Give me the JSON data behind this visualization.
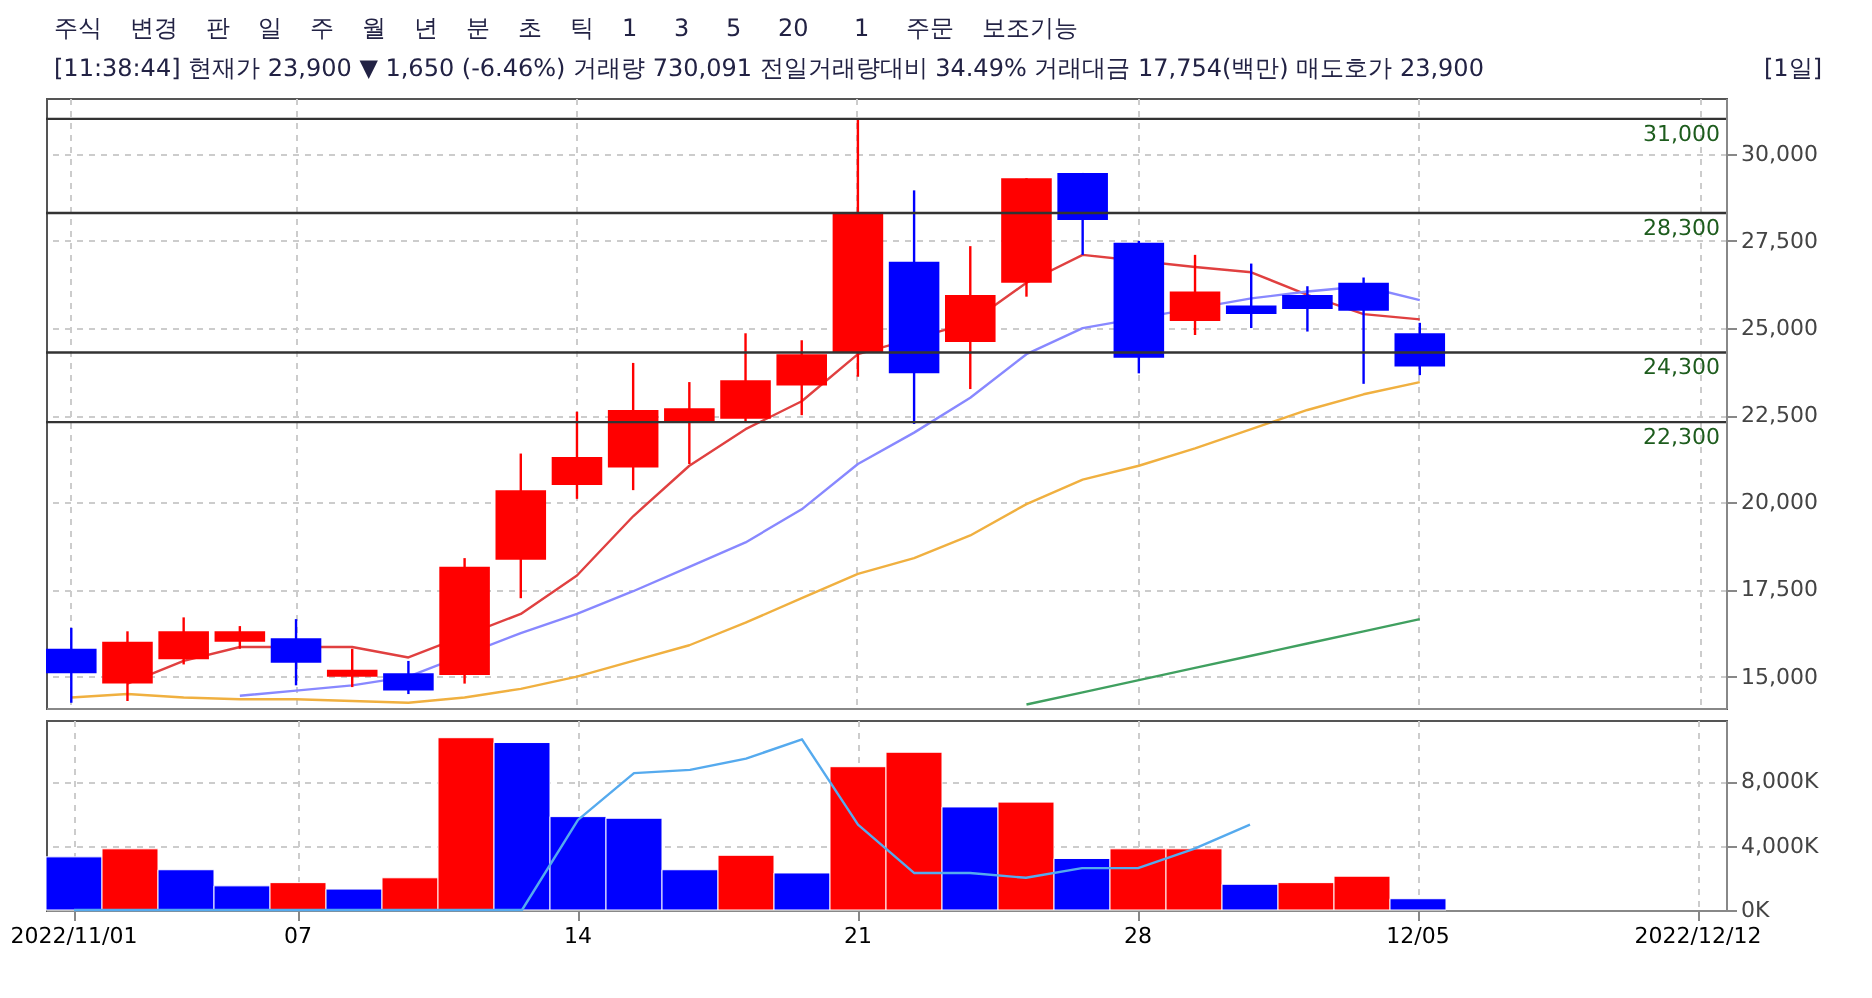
{
  "chart_data": [
    {
      "type": "candlestick",
      "title": "[11:38:44] 현재가 23,900 ▼ 1,650 (-6.46%) 거래량 730,091 전일거래량대비 34.49% 거래대금 17,754(백만) 매도호가 23,900",
      "annotations": [
        "주식",
        "변경",
        "판",
        "일",
        "주",
        "월",
        "년",
        "분",
        "초",
        "틱",
        "1",
        "3",
        "5",
        "20",
        "1",
        "주문",
        "보조기능",
        "[1일]"
      ],
      "categories": [
        null,
        null,
        null,
        null,
        null,
        null,
        null,
        null,
        null,
        null,
        null,
        null,
        null,
        null,
        null,
        null,
        null,
        null,
        null,
        null,
        null,
        null,
        null,
        null,
        null,
        null,
        null,
        null,
        null,
        null
      ],
      "ohlc": [
        [
          15800,
          16400,
          14250,
          15100
        ],
        [
          14800,
          16300,
          14300,
          16000
        ],
        [
          15500,
          16700,
          15350,
          16300
        ],
        [
          16000,
          16450,
          15800,
          16300
        ],
        [
          16100,
          16650,
          14750,
          15400
        ],
        [
          15000,
          15800,
          14700,
          15200
        ],
        [
          15100,
          15450,
          14500,
          14600
        ],
        [
          15050,
          18400,
          14800,
          18150
        ],
        [
          18350,
          21400,
          17250,
          20350
        ],
        [
          20500,
          22600,
          20100,
          21300
        ],
        [
          21000,
          24000,
          20350,
          22650
        ],
        [
          22300,
          23450,
          21100,
          22700
        ],
        [
          22400,
          24850,
          22300,
          23500
        ],
        [
          23350,
          24650,
          22500,
          24250
        ],
        [
          24300,
          31000,
          23600,
          28300
        ],
        [
          26900,
          28950,
          22250,
          23700
        ],
        [
          24600,
          27350,
          23250,
          25950
        ],
        [
          26300,
          29300,
          25900,
          29300
        ],
        [
          29450,
          29450,
          27100,
          28100
        ],
        [
          27450,
          27500,
          23700,
          24150
        ],
        [
          25200,
          27100,
          24800,
          26050
        ],
        [
          25650,
          26850,
          25000,
          25400
        ],
        [
          25950,
          26200,
          24900,
          25550
        ],
        [
          26300,
          26450,
          23400,
          25500
        ],
        [
          24850,
          25150,
          23650,
          23900
        ],
        null,
        null,
        null,
        null,
        null
      ],
      "colors": [
        "#0000ff",
        "#ff0000",
        "#ff0000",
        "#ff0000",
        "#0000ff",
        "#ff0000",
        "#0000ff",
        "#ff0000",
        "#ff0000",
        "#ff0000",
        "#ff0000",
        "#ff0000",
        "#ff0000",
        "#ff0000",
        "#ff0000",
        "#0000ff",
        "#ff0000",
        "#ff0000",
        "#0000ff",
        "#0000ff",
        "#ff0000",
        "#0000ff",
        "#0000ff",
        "#0000ff",
        "#0000ff",
        null,
        null,
        null,
        null,
        null
      ],
      "series": [
        {
          "type": "line",
          "color": "#e04040",
          "values": [
            null,
            14800,
            15450,
            15850,
            null,
            15850,
            15550,
            null,
            16800,
            17900,
            19600,
            21050,
            22100,
            22900,
            24250,
            null,
            25150,
            26300,
            27100,
            null,
            26750,
            26600,
            25950,
            25400,
            25250,
            null,
            null,
            null,
            null,
            null
          ]
        },
        {
          "type": "line",
          "color": "#8888ff",
          "values": [
            null,
            null,
            null,
            14450,
            14600,
            14750,
            15000,
            null,
            16250,
            16800,
            17450,
            18150,
            18850,
            19800,
            21100,
            22000,
            23000,
            24250,
            25000,
            null,
            null,
            25850,
            26050,
            26200,
            25800,
            null,
            null,
            null,
            null,
            null
          ]
        },
        {
          "type": "line",
          "color": "#f0b040",
          "values": [
            14400,
            14500,
            14400,
            14350,
            14350,
            14300,
            14250,
            14400,
            14650,
            15000,
            15450,
            15900,
            16550,
            17250,
            17950,
            18400,
            19050,
            19950,
            20650,
            21050,
            21550,
            22100,
            22650,
            23100,
            23450,
            null,
            null,
            null,
            null,
            null
          ]
        },
        {
          "type": "line",
          "color": "#40a060",
          "values": [
            null,
            null,
            null,
            null,
            null,
            null,
            null,
            null,
            null,
            null,
            null,
            null,
            null,
            null,
            null,
            null,
            null,
            14200,
            14550,
            14900,
            15250,
            15600,
            15950,
            16300,
            16650,
            null,
            null,
            null,
            null,
            null
          ]
        }
      ],
      "ylim": [
        14100,
        31600
      ],
      "yticks": [
        {
          "value": 15000,
          "label": "15,000"
        },
        {
          "value": 17500,
          "label": "17,500"
        },
        {
          "value": 20000,
          "label": "20,000"
        },
        {
          "value": 22500,
          "label": "22,500"
        },
        {
          "value": 25000,
          "label": "25,000"
        },
        {
          "value": 27500,
          "label": "27,500"
        },
        {
          "value": 30000,
          "label": "30,000"
        }
      ],
      "ref_lines": [
        {
          "axis": "y",
          "value": 31000,
          "label": "31,000"
        },
        {
          "axis": "y",
          "value": 28300,
          "label": "28,300"
        },
        {
          "axis": "y",
          "value": 24300,
          "label": "24,300"
        },
        {
          "axis": "y",
          "value": 22300,
          "label": "22,300"
        }
      ],
      "grid": true,
      "tick_labels": "y",
      "line_style": "solid",
      "marker": "none"
    },
    {
      "type": "bar",
      "categories": [
        "2022/11/01",
        null,
        null,
        null,
        "07",
        null,
        null,
        null,
        null,
        "14",
        null,
        null,
        null,
        null,
        "21",
        null,
        null,
        null,
        null,
        "28",
        null,
        null,
        null,
        null,
        "12/05",
        null,
        null,
        null,
        null,
        "2022/12/12"
      ],
      "values": [
        3300,
        3800,
        2500,
        1500,
        1700,
        1300,
        2000,
        10700,
        10400,
        5800,
        5700,
        2500,
        3400,
        2300,
        8900,
        9800,
        6400,
        6700,
        3200,
        3800,
        3800,
        1600,
        1700,
        2100,
        700,
        null,
        null,
        null,
        null,
        null
      ],
      "colors": [
        "#0000ff",
        "#ff0000",
        "#0000ff",
        "#0000ff",
        "#ff0000",
        "#0000ff",
        "#ff0000",
        "#ff0000",
        "#0000ff",
        "#0000ff",
        "#0000ff",
        "#0000ff",
        "#ff0000",
        "#0000ff",
        "#ff0000",
        "#ff0000",
        "#0000ff",
        "#ff0000",
        "#0000ff",
        "#ff0000",
        "#ff0000",
        "#0000ff",
        "#ff0000",
        "#ff0000",
        "#0000ff",
        null,
        null,
        null,
        null,
        null
      ],
      "series": [
        {
          "type": "line",
          "color": "#55aaee",
          "values": [
            0,
            0,
            0,
            0,
            0,
            0,
            0,
            0,
            0,
            5600,
            8500,
            8700,
            9400,
            10600,
            5300,
            2300,
            2300,
            2000,
            2600,
            2600,
            3800,
            5300,
            null,
            null,
            null,
            null,
            null,
            null,
            null,
            null
          ]
        }
      ],
      "ylim": [
        0,
        11800
      ],
      "yticks": [
        {
          "value": 0,
          "label": "0K"
        },
        {
          "value": 4000,
          "label": "4,000K"
        },
        {
          "value": 8000,
          "label": "8,000K"
        }
      ],
      "grid": true,
      "line_style": "solid",
      "marker": "none"
    }
  ]
}
